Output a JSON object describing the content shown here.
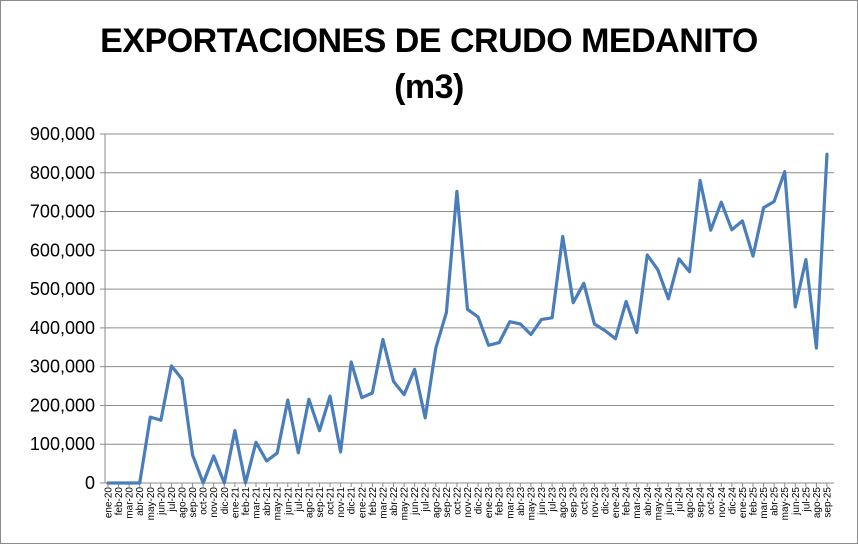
{
  "chart_data": {
    "type": "line",
    "title_line1": "EXPORTACIONES DE CRUDO MEDANITO",
    "title_line2": "(m3)",
    "ylim": [
      0,
      900000
    ],
    "yticks": [
      "0",
      "100,000",
      "200,000",
      "300,000",
      "400,000",
      "500,000",
      "600,000",
      "700,000",
      "800,000",
      "900,000"
    ],
    "grid": true,
    "line_color": "#4a7ebb",
    "categories": [
      "ene-20",
      "feb-20",
      "mar-20",
      "abr-20",
      "may-20",
      "jun-20",
      "jul-20",
      "ago-20",
      "sep-20",
      "oct-20",
      "nov-20",
      "dic-20",
      "ene-21",
      "feb-21",
      "mar-21",
      "abr-21",
      "may-21",
      "jun-21",
      "jul-21",
      "ago-21",
      "sep-21",
      "oct-21",
      "nov-21",
      "dic-21",
      "ene-22",
      "feb-22",
      "mar-22",
      "abr-22",
      "may-22",
      "jun-22",
      "jul-22",
      "ago-22",
      "sep-22",
      "oct-22",
      "nov-22",
      "dic-22",
      "ene-23",
      "feb-23",
      "mar-23",
      "abr-23",
      "may-23",
      "jun-23",
      "jul-23",
      "ago-23",
      "sep-23",
      "oct-23",
      "nov-23",
      "dic-23",
      "ene-24",
      "feb-24",
      "mar-24",
      "abr-24",
      "may-24",
      "jun-24",
      "jul-24",
      "ago-24",
      "sep-24",
      "oct-24",
      "nov-24",
      "dic-24",
      "ene-25",
      "feb-25",
      "mar-25",
      "abr-25",
      "may-25",
      "jun-25",
      "jul-25",
      "ago-25",
      "sep-25"
    ],
    "values": [
      0,
      0,
      0,
      0,
      170000,
      162000,
      302000,
      268000,
      72000,
      0,
      70000,
      0,
      135000,
      0,
      105000,
      57000,
      77000,
      214000,
      78000,
      216000,
      135000,
      224000,
      80000,
      312000,
      220000,
      232000,
      370000,
      262000,
      228000,
      293000,
      168000,
      348000,
      440000,
      752000,
      448000,
      428000,
      355000,
      362000,
      416000,
      410000,
      383000,
      422000,
      426000,
      636000,
      465000,
      515000,
      410000,
      393000,
      372000,
      468000,
      388000,
      588000,
      550000,
      475000,
      578000,
      545000,
      780000,
      652000,
      724000,
      653000,
      676000,
      585000,
      710000,
      726000,
      803000,
      454000,
      576000,
      348000,
      848000
    ]
  }
}
